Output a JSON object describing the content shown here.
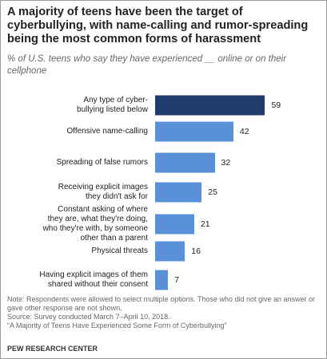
{
  "chart_data": {
    "type": "bar",
    "orientation": "horizontal",
    "title": "A majority of teens have been the target of cyberbullying, with name-calling and rumor-spreading being the most common forms of harassment",
    "subtitle": "% of U.S. teens who say they have experienced __ online or on their cellphone",
    "categories": [
      "Any type of cyber-\nbullying listed below",
      "Offensive name-calling",
      "Spreading of false rumors",
      "Receiving explicit images\nthey didn't ask for",
      "Constant asking of where\nthey are, what they're doing,\nwho they're with, by someone\nother than a parent",
      "Physical threats",
      "Having explicit images of them\nshared without their consent"
    ],
    "values": [
      59,
      42,
      32,
      25,
      21,
      16,
      7
    ],
    "colors": [
      "#1d3b6b",
      "#5a90d8",
      "#5a90d8",
      "#5a90d8",
      "#5a90d8",
      "#5a90d8",
      "#5a90d8"
    ],
    "note": "Note: Respondents were allowed to select multiple options. Those who did not give an answer or gave other response are not shown.",
    "source": "Source: Survey conducted March 7–April 10, 2018.",
    "report": "“A Majority of Teens Have Experienced Some Form of Cyberbullying”",
    "footer": "PEW RESEARCH CENTER"
  }
}
